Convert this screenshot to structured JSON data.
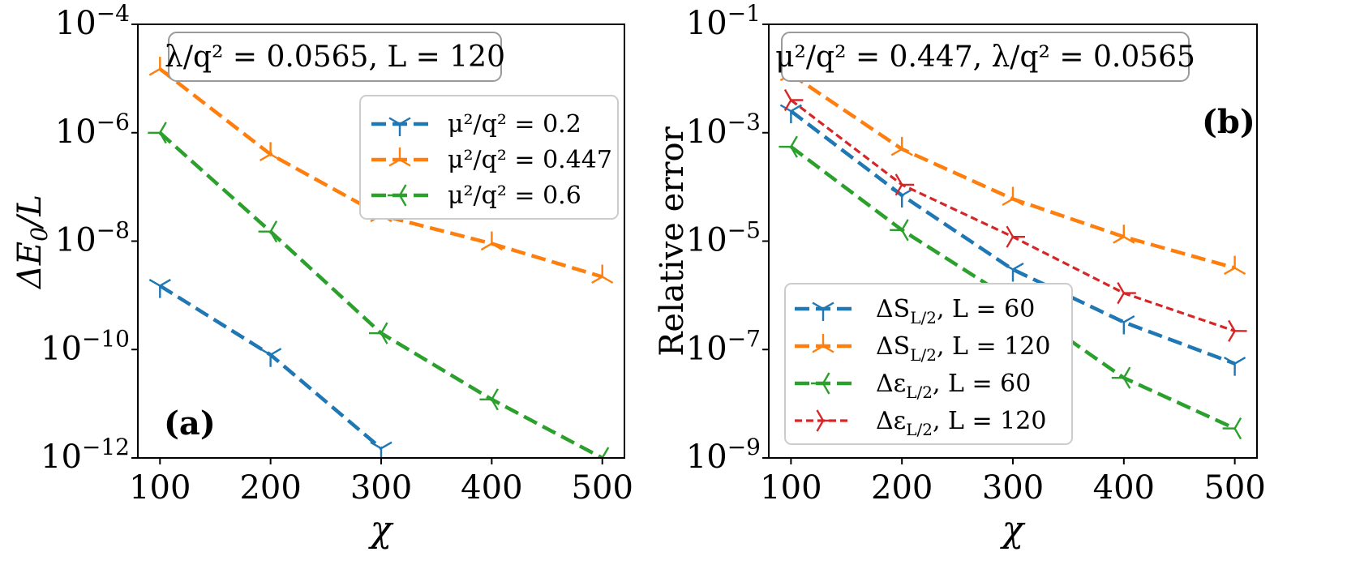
{
  "figure": {
    "panel_a_label": "(a)",
    "panel_b_label": "(b)"
  },
  "chart_data": [
    {
      "type": "line",
      "panel": "a",
      "xlabel": "χ",
      "ylabel": "ΔE₀/L",
      "yscale": "log",
      "xlim": [
        80,
        520
      ],
      "ylim_exp": [
        -12,
        -4
      ],
      "xticks": [
        100,
        200,
        300,
        400,
        500
      ],
      "xtick_labels": [
        "100",
        "200",
        "300",
        "400",
        "500"
      ],
      "ytick_exps": [
        -12,
        -10,
        -8,
        -6,
        -4
      ],
      "ytick_labels": [
        {
          "base": "10",
          "exp": "−12"
        },
        {
          "base": "10",
          "exp": "−10"
        },
        {
          "base": "10",
          "exp": "−8"
        },
        {
          "base": "10",
          "exp": "−6"
        },
        {
          "base": "10",
          "exp": "−4"
        }
      ],
      "annotation": "λ/q² = 0.0565, L = 120",
      "legend_position": "upper-right",
      "series": [
        {
          "name": "μ²/q² = 0.2",
          "color": "#1f77b4",
          "marker": "tri_down",
          "dash": "long",
          "x": [
            100,
            200,
            300
          ],
          "y": [
            1.5e-09,
            8e-11,
            1.5e-12
          ]
        },
        {
          "name": "μ²/q² = 0.447",
          "color": "#ff7f0e",
          "marker": "tri_up",
          "dash": "long",
          "x": [
            100,
            200,
            300,
            400,
            500
          ],
          "y": [
            1.5e-05,
            4e-07,
            3e-08,
            9e-09,
            2.2e-09
          ]
        },
        {
          "name": "μ²/q² = 0.6",
          "color": "#2ca02c",
          "marker": "tri_left",
          "dash": "long",
          "x": [
            100,
            200,
            300,
            400,
            500
          ],
          "y": [
            1e-06,
            1.5e-08,
            2e-10,
            1.2e-11,
            1e-12
          ]
        }
      ]
    },
    {
      "type": "line",
      "panel": "b",
      "xlabel": "χ",
      "ylabel": "Relative error",
      "yscale": "log",
      "xlim": [
        80,
        520
      ],
      "ylim_exp": [
        -9,
        -1
      ],
      "xticks": [
        100,
        200,
        300,
        400,
        500
      ],
      "xtick_labels": [
        "100",
        "200",
        "300",
        "400",
        "500"
      ],
      "ytick_exps": [
        -9,
        -7,
        -5,
        -3,
        -1
      ],
      "ytick_labels": [
        {
          "base": "10",
          "exp": "−9"
        },
        {
          "base": "10",
          "exp": "−7"
        },
        {
          "base": "10",
          "exp": "−5"
        },
        {
          "base": "10",
          "exp": "−3"
        },
        {
          "base": "10",
          "exp": "−1"
        }
      ],
      "annotation": "μ²/q² = 0.447, λ/q² = 0.0565",
      "legend_position": "lower-left",
      "series": [
        {
          "name": "ΔS_{L/2}, L = 60",
          "label_main": "ΔS",
          "label_sub": "L/2",
          "label_rest": ",  L = 60",
          "color": "#1f77b4",
          "marker": "tri_down",
          "dash": "long",
          "x": [
            100,
            200,
            300,
            400,
            500
          ],
          "y": [
            0.0025,
            7e-05,
            3e-06,
            3.2e-07,
            5.5e-08
          ]
        },
        {
          "name": "ΔS_{L/2}, L = 120",
          "label_main": "ΔS",
          "label_sub": "L/2",
          "label_rest": ",  L = 120",
          "color": "#ff7f0e",
          "marker": "tri_up",
          "dash": "long",
          "x": [
            100,
            200,
            300,
            400,
            500
          ],
          "y": [
            0.012,
            0.0005,
            6e-05,
            1.2e-05,
            3.2e-06
          ]
        },
        {
          "name": "Δε_{L/2}, L = 60",
          "label_main": "Δε",
          "label_sub": "L/2",
          "label_rest": ",  L = 60",
          "color": "#2ca02c",
          "marker": "tri_left",
          "dash": "long",
          "x": [
            100,
            200,
            300,
            400,
            500
          ],
          "y": [
            0.00055,
            1.6e-05,
            8e-07,
            3e-08,
            3.5e-09
          ]
        },
        {
          "name": "Δε_{L/2}, L = 120",
          "label_main": "Δε",
          "label_sub": "L/2",
          "label_rest": ",  L = 120",
          "color": "#d62728",
          "marker": "tri_right",
          "dash": "short",
          "x": [
            100,
            200,
            300,
            400,
            500
          ],
          "y": [
            0.004,
            0.00011,
            1.2e-05,
            1.1e-06,
            2.2e-07
          ]
        }
      ]
    }
  ]
}
